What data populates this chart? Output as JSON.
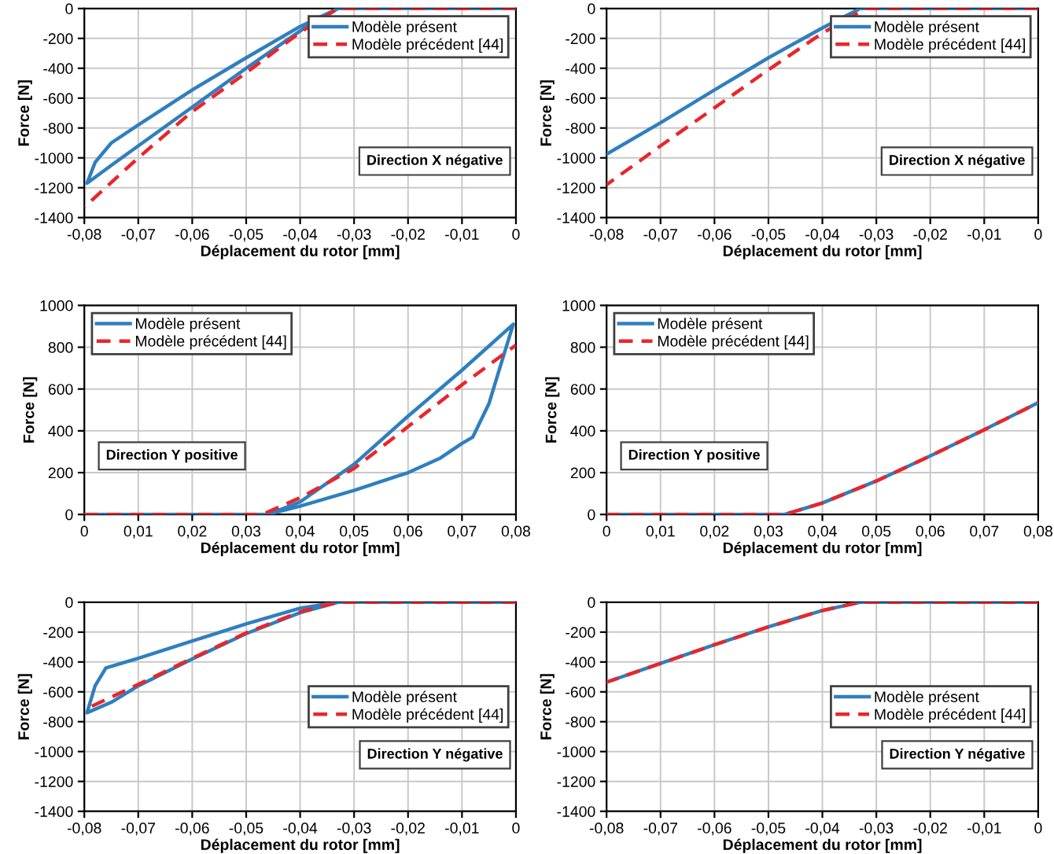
{
  "chart_data": [
    {
      "type": "line",
      "xlabel": "Déplacement du rotor [mm]",
      "ylabel": "Force [N]",
      "xlim": [
        -0.08,
        0
      ],
      "ylim": [
        -1400,
        0
      ],
      "xticks": [
        {
          "value": -0.08,
          "label": "-0,08"
        },
        {
          "value": -0.07,
          "label": "-0,07"
        },
        {
          "value": -0.06,
          "label": "-0,06"
        },
        {
          "value": -0.05,
          "label": "-0,05"
        },
        {
          "value": -0.04,
          "label": "-0,04"
        },
        {
          "value": -0.03,
          "label": "-0,03"
        },
        {
          "value": -0.02,
          "label": "-0,02"
        },
        {
          "value": -0.01,
          "label": "-0,01"
        },
        0
      ],
      "yticks": [
        -1400,
        -1200,
        -1000,
        -800,
        -600,
        -400,
        -200,
        0
      ],
      "grid": true,
      "legend": "top right",
      "annotations": [
        "Direction X négative"
      ],
      "series": [
        {
          "name": "Modèle présent",
          "color": "#2f7fbf",
          "line_style": "solid",
          "x": [
            0,
            -0.033,
            -0.04,
            -0.05,
            -0.06,
            -0.07,
            -0.075,
            -0.078,
            -0.0795,
            -0.075,
            -0.07,
            -0.06,
            -0.05,
            -0.04,
            -0.036,
            -0.033
          ],
          "values": [
            0,
            0,
            -120,
            -330,
            -545,
            -780,
            -900,
            -1030,
            -1170,
            -1050,
            -920,
            -660,
            -400,
            -150,
            -60,
            0
          ]
        },
        {
          "name": "Modèle précédent [44]",
          "color": "#e8262b",
          "line_style": "dashed",
          "x": [
            0,
            -0.033,
            -0.04,
            -0.05,
            -0.06,
            -0.07,
            -0.08
          ],
          "values": [
            0,
            0,
            -160,
            -430,
            -690,
            -1000,
            -1330
          ]
        }
      ]
    },
    {
      "type": "line",
      "xlabel": "Déplacement du rotor [mm]",
      "ylabel": "Force [N]",
      "xlim": [
        -0.08,
        0
      ],
      "ylim": [
        -1400,
        0
      ],
      "xticks": [
        {
          "value": -0.08,
          "label": "-0,08"
        },
        {
          "value": -0.07,
          "label": "-0,07"
        },
        {
          "value": -0.06,
          "label": "-0,06"
        },
        {
          "value": -0.05,
          "label": "-0,05"
        },
        {
          "value": -0.04,
          "label": "-0,04"
        },
        {
          "value": -0.03,
          "label": "-0,03"
        },
        {
          "value": -0.02,
          "label": "-0,02"
        },
        {
          "value": -0.01,
          "label": "-0,01"
        },
        0
      ],
      "yticks": [
        -1400,
        -1200,
        -1000,
        -800,
        -600,
        -400,
        -200,
        0
      ],
      "grid": true,
      "legend": "top right",
      "annotations": [
        "Direction X négative"
      ],
      "series": [
        {
          "name": "Modèle présent",
          "color": "#2f7fbf",
          "line_style": "solid",
          "x": [
            0,
            -0.033,
            -0.04,
            -0.05,
            -0.06,
            -0.07,
            -0.08
          ],
          "values": [
            0,
            0,
            -130,
            -330,
            -545,
            -765,
            -975
          ]
        },
        {
          "name": "Modèle précédent [44]",
          "color": "#e8262b",
          "line_style": "dashed",
          "x": [
            0,
            -0.032,
            -0.04,
            -0.05,
            -0.06,
            -0.07,
            -0.08
          ],
          "values": [
            0,
            0,
            -165,
            -410,
            -665,
            -920,
            -1180
          ]
        }
      ]
    },
    {
      "type": "line",
      "xlabel": "Déplacement du rotor [mm]",
      "ylabel": "Force [N]",
      "xlim": [
        0,
        0.08
      ],
      "ylim": [
        0,
        1000
      ],
      "xticks": [
        0,
        {
          "value": 0.01,
          "label": "0,01"
        },
        {
          "value": 0.02,
          "label": "0,02"
        },
        {
          "value": 0.03,
          "label": "0,03"
        },
        {
          "value": 0.04,
          "label": "0,04"
        },
        {
          "value": 0.05,
          "label": "0,05"
        },
        {
          "value": 0.06,
          "label": "0,06"
        },
        {
          "value": 0.07,
          "label": "0,07"
        },
        {
          "value": 0.08,
          "label": "0,08"
        }
      ],
      "yticks": [
        0,
        200,
        400,
        600,
        800,
        1000
      ],
      "grid": true,
      "legend": "top left",
      "annotations": [
        "Direction Y positive"
      ],
      "series": [
        {
          "name": "Modèle présent",
          "color": "#2f7fbf",
          "line_style": "solid",
          "x": [
            0,
            0.034,
            0.04,
            0.05,
            0.06,
            0.07,
            0.0795,
            0.077,
            0.075,
            0.072,
            0.07,
            0.066,
            0.06,
            0.05,
            0.04,
            0.034
          ],
          "values": [
            0,
            0,
            60,
            240,
            470,
            690,
            910,
            700,
            530,
            370,
            340,
            270,
            200,
            115,
            40,
            0
          ]
        },
        {
          "name": "Modèle précédent [44]",
          "color": "#e8262b",
          "line_style": "dashed",
          "x": [
            0,
            0.033,
            0.04,
            0.05,
            0.06,
            0.07,
            0.08
          ],
          "values": [
            0,
            0,
            80,
            220,
            420,
            620,
            810
          ]
        }
      ]
    },
    {
      "type": "line",
      "xlabel": "Déplacement du rotor [mm]",
      "ylabel": "Force [N]",
      "xlim": [
        0,
        0.08
      ],
      "ylim": [
        0,
        1000
      ],
      "xticks": [
        0,
        {
          "value": 0.01,
          "label": "0,01"
        },
        {
          "value": 0.02,
          "label": "0,02"
        },
        {
          "value": 0.03,
          "label": "0,03"
        },
        {
          "value": 0.04,
          "label": "0,04"
        },
        {
          "value": 0.05,
          "label": "0,05"
        },
        {
          "value": 0.06,
          "label": "0,06"
        },
        {
          "value": 0.07,
          "label": "0,07"
        },
        {
          "value": 0.08,
          "label": "0,08"
        }
      ],
      "yticks": [
        0,
        200,
        400,
        600,
        800,
        1000
      ],
      "grid": true,
      "legend": "top left",
      "annotations": [
        "Direction Y positive"
      ],
      "series": [
        {
          "name": "Modèle présent",
          "color": "#2f7fbf",
          "line_style": "solid",
          "x": [
            0,
            0.033,
            0.04,
            0.05,
            0.06,
            0.07,
            0.08
          ],
          "values": [
            0,
            0,
            55,
            160,
            280,
            405,
            535
          ]
        },
        {
          "name": "Modèle précédent [44]",
          "color": "#e8262b",
          "line_style": "dashed",
          "x": [
            0,
            0.033,
            0.04,
            0.05,
            0.06,
            0.07,
            0.08
          ],
          "values": [
            0,
            0,
            55,
            160,
            280,
            405,
            535
          ]
        }
      ]
    },
    {
      "type": "line",
      "xlabel": "Déplacement du rotor [mm]",
      "ylabel": "Force [N]",
      "xlim": [
        -0.08,
        0
      ],
      "ylim": [
        -1400,
        0
      ],
      "xticks": [
        {
          "value": -0.08,
          "label": "-0,08"
        },
        {
          "value": -0.07,
          "label": "-0,07"
        },
        {
          "value": -0.06,
          "label": "-0,06"
        },
        {
          "value": -0.05,
          "label": "-0,05"
        },
        {
          "value": -0.04,
          "label": "-0,04"
        },
        {
          "value": -0.03,
          "label": "-0,03"
        },
        {
          "value": -0.02,
          "label": "-0,02"
        },
        {
          "value": -0.01,
          "label": "-0,01"
        },
        0
      ],
      "yticks": [
        -1400,
        -1200,
        -1000,
        -800,
        -600,
        -400,
        -200,
        0
      ],
      "grid": true,
      "legend": "right",
      "annotations": [
        "Direction Y négative"
      ],
      "series": [
        {
          "name": "Modèle présent",
          "color": "#2f7fbf",
          "line_style": "solid",
          "x": [
            0,
            -0.033,
            -0.04,
            -0.05,
            -0.06,
            -0.07,
            -0.076,
            -0.078,
            -0.0795,
            -0.075,
            -0.07,
            -0.06,
            -0.05,
            -0.04,
            -0.033
          ],
          "values": [
            0,
            0,
            -40,
            -145,
            -260,
            -375,
            -440,
            -560,
            -740,
            -670,
            -560,
            -380,
            -210,
            -70,
            0
          ]
        },
        {
          "name": "Modèle précédent [44]",
          "color": "#e8262b",
          "line_style": "dashed",
          "x": [
            0,
            -0.033,
            -0.04,
            -0.05,
            -0.06,
            -0.07,
            -0.08
          ],
          "values": [
            0,
            0,
            -65,
            -205,
            -375,
            -550,
            -720
          ]
        }
      ]
    },
    {
      "type": "line",
      "xlabel": "Déplacement du rotor [mm]",
      "ylabel": "Force [N]",
      "xlim": [
        -0.08,
        0
      ],
      "ylim": [
        -1400,
        0
      ],
      "xticks": [
        {
          "value": -0.08,
          "label": "-0,08"
        },
        {
          "value": -0.07,
          "label": "-0,07"
        },
        {
          "value": -0.06,
          "label": "-0,06"
        },
        {
          "value": -0.05,
          "label": "-0,05"
        },
        {
          "value": -0.04,
          "label": "-0,04"
        },
        {
          "value": -0.03,
          "label": "-0,03"
        },
        {
          "value": -0.02,
          "label": "-0,02"
        },
        {
          "value": -0.01,
          "label": "-0,01"
        },
        0
      ],
      "yticks": [
        -1400,
        -1200,
        -1000,
        -800,
        -600,
        -400,
        -200,
        0
      ],
      "grid": true,
      "legend": "right",
      "annotations": [
        "Direction Y négative"
      ],
      "series": [
        {
          "name": "Modèle présent",
          "color": "#2f7fbf",
          "line_style": "solid",
          "x": [
            0,
            -0.033,
            -0.04,
            -0.05,
            -0.06,
            -0.07,
            -0.08
          ],
          "values": [
            0,
            0,
            -55,
            -165,
            -285,
            -410,
            -535
          ]
        },
        {
          "name": "Modèle précédent [44]",
          "color": "#e8262b",
          "line_style": "dashed",
          "x": [
            0,
            -0.033,
            -0.04,
            -0.05,
            -0.06,
            -0.07,
            -0.08
          ],
          "values": [
            0,
            0,
            -55,
            -165,
            -285,
            -410,
            -535
          ]
        }
      ]
    }
  ]
}
